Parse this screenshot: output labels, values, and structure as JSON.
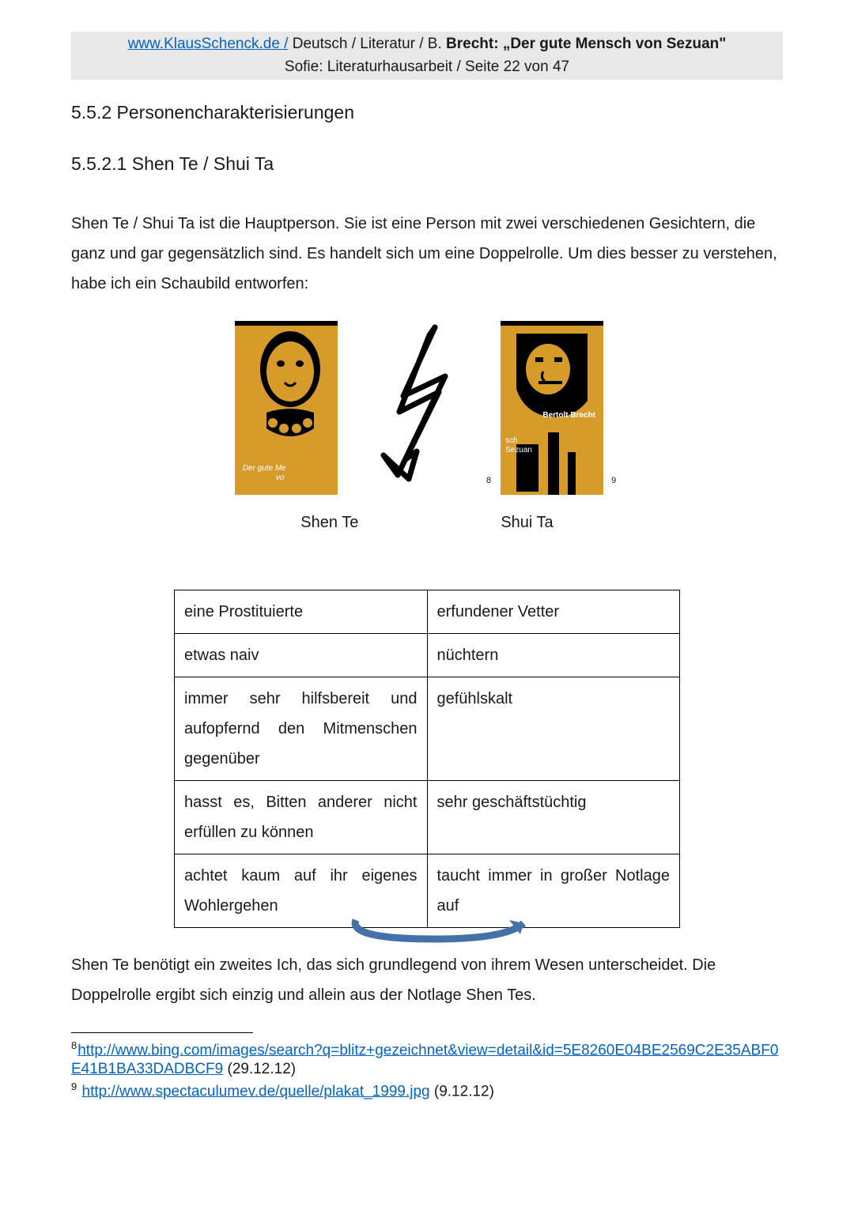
{
  "header": {
    "site_link": "www.KlausSchenck.de /",
    "line1_mid": " Deutsch / Literatur / B. ",
    "line1_bold": "Brecht: „Der gute Mensch von Sezuan\"",
    "line2": "Sofie: Literaturhausarbeit / Seite 22 von 47"
  },
  "section_title": "5.5.2 Personencharakterisierungen",
  "subsection_title": "5.5.2.1 Shen Te / Shui Ta",
  "intro_para": "Shen Te / Shui Ta ist die Hauptperson. Sie ist eine Person mit zwei verschiedenen Gesichtern, die ganz und gar gegensätzlich sind. Es handelt sich um eine Doppelrolle. Um dies besser zu verstehen, habe ich ein Schaubild entworfen:",
  "figure": {
    "left_cover": {
      "bg_color": "#d79b2a",
      "ink_color": "#000000",
      "caption_line1": "Der gute Me",
      "caption_line2": "vo"
    },
    "right_cover": {
      "bg_color": "#d79b2a",
      "ink_color": "#000000",
      "author": "Bertolt Brecht",
      "caption_line1": "sch",
      "caption_line2": "Sezuan"
    },
    "fn_left": "8",
    "fn_right": "9",
    "caption_left": "Shen Te",
    "caption_right": "Shui Ta"
  },
  "table": {
    "rows": [
      {
        "left": "eine Prostituierte",
        "right": "erfundener Vetter",
        "justify": false
      },
      {
        "left": "etwas naiv",
        "right": "nüchtern",
        "justify": false
      },
      {
        "left": "immer sehr hilfsbereit und aufopfernd den Mitmenschen gegenüber",
        "right": "gefühlskalt",
        "justify": true
      },
      {
        "left": "hasst es, Bitten anderer nicht erfüllen zu können",
        "right": "sehr geschäftstüchtig",
        "justify": true
      },
      {
        "left": "achtet kaum auf ihr eigenes Wohlergehen",
        "right": "taucht immer in großer Notlage auf",
        "justify": true
      }
    ]
  },
  "closing_para": "Shen Te benötigt ein zweites Ich, das sich grundlegend von ihrem Wesen unterscheidet. Die Doppelrolle ergibt sich einzig und allein aus der Notlage Shen Tes.",
  "footnotes": [
    {
      "num": "8",
      "url": "http://www.bing.com/images/search?q=blitz+gezeichnet&view=detail&id=5E8260E04BE2569C2E35ABF0E41B1BA33DADBCF9",
      "date": " (29.12.12)"
    },
    {
      "num": "9",
      "url": "http://www.spectaculumev.de/quelle/plakat_1999.jpg",
      "date": "  (9.12.12)"
    }
  ],
  "colors": {
    "link": "#0563c1",
    "arrow": "#4472a8",
    "cover_bg": "#d79b2a"
  }
}
